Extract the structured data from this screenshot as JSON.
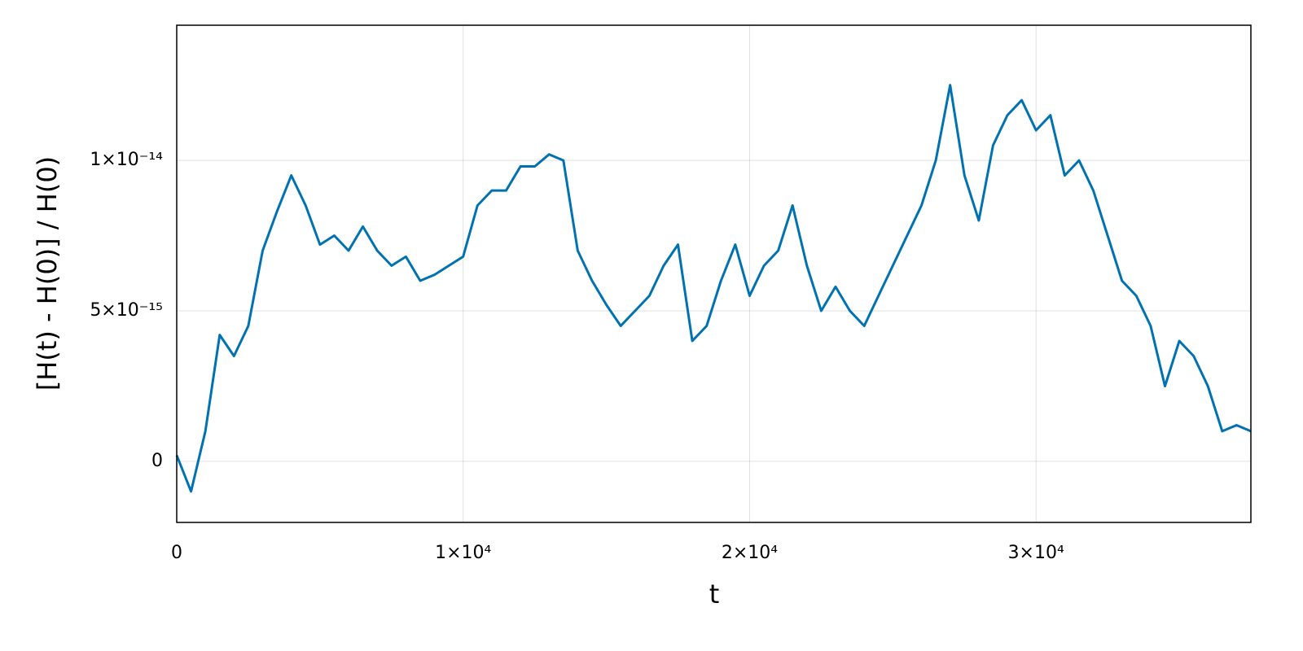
{
  "chart_data": {
    "type": "line",
    "xlabel": "t",
    "ylabel": "[H(t) - H(0)] / H(0)",
    "x": [
      0,
      500,
      1000,
      1500,
      2000,
      2500,
      3000,
      3500,
      4000,
      4500,
      5000,
      5500,
      6000,
      6500,
      7000,
      7500,
      8000,
      8500,
      9000,
      9500,
      10000,
      10500,
      11000,
      11500,
      12000,
      12500,
      13000,
      13500,
      14000,
      14500,
      15000,
      15500,
      16000,
      16500,
      17000,
      17500,
      18000,
      18500,
      19000,
      19500,
      20000,
      20500,
      21000,
      21500,
      22000,
      22500,
      23000,
      23500,
      24000,
      24500,
      25000,
      25500,
      26000,
      26500,
      27000,
      27500,
      28000,
      28500,
      29000,
      29500,
      30000,
      30500,
      31000,
      31500,
      32000,
      32500,
      33000,
      33500,
      34000,
      34500,
      35000,
      35500,
      36000,
      36500,
      37000,
      37500
    ],
    "series": [
      {
        "color": "#0072b2",
        "values": [
          2e-16,
          -1e-15,
          1e-15,
          4.2e-15,
          3.5e-15,
          4.5e-15,
          7e-15,
          8.3e-15,
          9.5e-15,
          8.5e-15,
          7.2e-15,
          7.5e-15,
          7e-15,
          7.8e-15,
          7e-15,
          6.5e-15,
          6.8e-15,
          6e-15,
          6.2e-15,
          6.5e-15,
          6.8e-15,
          8.5e-15,
          9e-15,
          9e-15,
          9.8e-15,
          9.8e-15,
          1.02e-14,
          1e-14,
          7e-15,
          6e-15,
          5.2e-15,
          4.5e-15,
          5e-15,
          5.5e-15,
          6.5e-15,
          7.2e-15,
          4e-15,
          4.5e-15,
          6e-15,
          7.2e-15,
          5.5e-15,
          6.5e-15,
          7e-15,
          8.5e-15,
          6.5e-15,
          5e-15,
          5.8e-15,
          5e-15,
          4.5e-15,
          5.5e-15,
          6.5e-15,
          7.5e-15,
          8.5e-15,
          1e-14,
          1.25e-14,
          9.5e-15,
          8e-15,
          1.05e-14,
          1.15e-14,
          1.2e-14,
          1.1e-14,
          1.15e-14,
          9.5e-15,
          1e-14,
          9e-15,
          7.5e-15,
          6e-15,
          5.5e-15,
          4.5e-15,
          2.5e-15,
          4e-15,
          3.5e-15,
          2.5e-15,
          1e-15,
          1.2e-15,
          1e-15
        ]
      }
    ],
    "xlim": [
      0,
      37500
    ],
    "ylim": [
      -2.03e-15,
      1.449e-14
    ],
    "xticks": [
      0,
      {
        "value": 10000,
        "label": "1×10⁴"
      },
      {
        "value": 20000,
        "label": "2×10⁴"
      },
      {
        "value": 30000,
        "label": "3×10⁴"
      }
    ],
    "yticks": [
      0,
      {
        "value": 5e-15,
        "label": "5×10⁻¹⁵"
      },
      {
        "value": 1e-14,
        "label": "1×10⁻¹⁴"
      }
    ],
    "grid": true
  }
}
